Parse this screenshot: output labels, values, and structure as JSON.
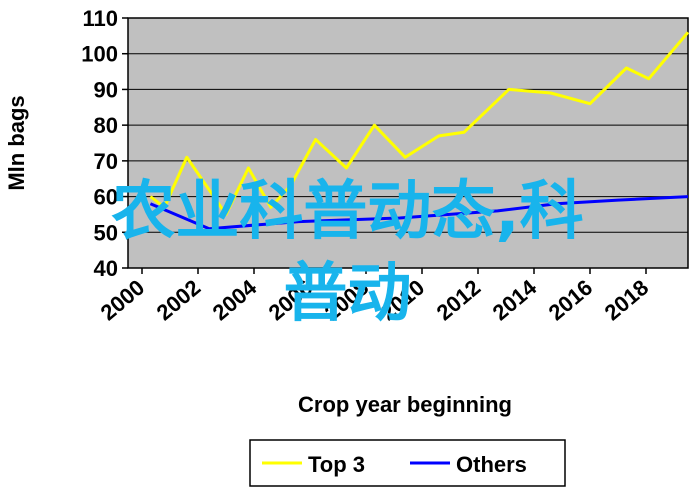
{
  "chart_data": {
    "type": "line",
    "y_label": "Mln bags",
    "x_label": "Crop year beginning",
    "xlim": [
      1999.5,
      2019.5
    ],
    "ylim": [
      40,
      110
    ],
    "xticks": [
      2000,
      2002,
      2004,
      2006,
      2008,
      2010,
      2012,
      2014,
      2016,
      2018
    ],
    "yticks": [
      40,
      50,
      60,
      70,
      80,
      90,
      100,
      110
    ],
    "grid": true,
    "legend": "bottom",
    "series": [
      {
        "name": "Top 3",
        "color": "#ffff00",
        "x": [
          2000.3,
          2000.8,
          2001.6,
          2003,
          2003.8,
          2004.6,
          2005.3,
          2006.2,
          2007.3,
          2008.3,
          2009.4,
          2010.6,
          2011.5,
          2013.1,
          2014.6,
          2016,
          2017.3,
          2018.1,
          2019.5
        ],
        "values": [
          60,
          57,
          71,
          55,
          68,
          57,
          63,
          76,
          68,
          80,
          71,
          77,
          78,
          90,
          89,
          86,
          96,
          93,
          106
        ]
      },
      {
        "name": "Others",
        "color": "#0000ff",
        "x": [
          2000.3,
          2002.4,
          2005.6,
          2009.2,
          2012.7,
          2014.8,
          2017,
          2019.5
        ],
        "values": [
          58,
          51,
          53,
          54,
          56,
          58,
          59,
          60
        ]
      }
    ]
  },
  "overlay": {
    "lines": [
      "农业科普动态,科",
      "普动"
    ]
  }
}
